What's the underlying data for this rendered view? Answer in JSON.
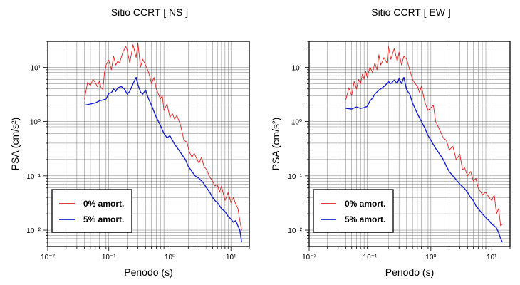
{
  "chart_data": [
    {
      "type": "line",
      "title": "Sitio CCRT [ NS ]",
      "xlabel": "Periodo (s)",
      "ylabel": "PSA (cm/s²)",
      "xscale": "log",
      "yscale": "log",
      "xlim": [
        0.01,
        20
      ],
      "ylim": [
        0.005,
        30
      ],
      "x_ticks": [
        "10⁻²",
        "10⁻¹",
        "10⁰",
        "10¹"
      ],
      "y_ticks": [
        "10⁻²",
        "10⁻¹",
        "10⁰",
        "10¹"
      ],
      "grid": true,
      "legend_position": "bottom-left",
      "series": [
        {
          "name": "0% amort.",
          "color": "#e02020",
          "x": [
            0.04,
            0.045,
            0.05,
            0.055,
            0.06,
            0.065,
            0.07,
            0.075,
            0.08,
            0.085,
            0.09,
            0.1,
            0.11,
            0.12,
            0.13,
            0.14,
            0.15,
            0.17,
            0.19,
            0.2,
            0.22,
            0.25,
            0.28,
            0.3,
            0.33,
            0.36,
            0.4,
            0.45,
            0.5,
            0.55,
            0.6,
            0.65,
            0.7,
            0.75,
            0.8,
            0.9,
            1.0,
            1.1,
            1.2,
            1.3,
            1.5,
            1.7,
            1.9,
            2.1,
            2.3,
            2.5,
            2.8,
            3.0,
            3.3,
            3.6,
            4.0,
            4.5,
            5.0,
            5.5,
            6.0,
            6.5,
            7.0,
            8.0,
            9.0,
            10.0,
            11.0,
            12.0,
            13.0,
            14.0,
            15.0
          ],
          "values": [
            2.6,
            5.3,
            4.6,
            6.0,
            5.2,
            4.4,
            5.6,
            4.2,
            3.9,
            8.0,
            11.0,
            13.5,
            9.0,
            16.0,
            11.0,
            13.0,
            12.0,
            19.0,
            24.0,
            21.0,
            12.0,
            26.0,
            15.0,
            28.0,
            10.0,
            14.0,
            11.0,
            8.0,
            5.0,
            6.5,
            4.0,
            3.2,
            2.6,
            3.0,
            1.6,
            2.1,
            1.2,
            1.4,
            1.1,
            1.3,
            0.85,
            0.45,
            0.42,
            0.27,
            0.22,
            0.26,
            0.2,
            0.17,
            0.22,
            0.15,
            0.13,
            0.095,
            0.08,
            0.065,
            0.07,
            0.05,
            0.065,
            0.035,
            0.05,
            0.032,
            0.04,
            0.03,
            0.025,
            0.015,
            0.01
          ]
        },
        {
          "name": "5% amort.",
          "color": "#1520d0",
          "x": [
            0.04,
            0.05,
            0.06,
            0.07,
            0.08,
            0.09,
            0.1,
            0.11,
            0.12,
            0.13,
            0.14,
            0.16,
            0.18,
            0.2,
            0.22,
            0.25,
            0.28,
            0.3,
            0.33,
            0.36,
            0.4,
            0.45,
            0.5,
            0.6,
            0.7,
            0.8,
            0.9,
            1.0,
            1.2,
            1.4,
            1.6,
            1.8,
            2.0,
            2.3,
            2.6,
            3.0,
            3.5,
            4.0,
            4.5,
            5.0,
            5.5,
            6.0,
            7.0,
            8.0,
            9.0,
            10.0,
            11.0,
            12.0,
            13.0,
            14.0,
            15.0
          ],
          "values": [
            2.0,
            2.1,
            2.2,
            2.4,
            2.5,
            2.6,
            3.3,
            3.4,
            4.0,
            3.6,
            4.2,
            4.4,
            4.0,
            3.2,
            3.6,
            5.0,
            6.5,
            4.8,
            3.5,
            3.2,
            3.8,
            2.6,
            2.0,
            1.2,
            0.85,
            0.6,
            0.5,
            0.55,
            0.38,
            0.3,
            0.24,
            0.2,
            0.15,
            0.12,
            0.1,
            0.09,
            0.075,
            0.06,
            0.05,
            0.04,
            0.035,
            0.032,
            0.025,
            0.022,
            0.018,
            0.016,
            0.014,
            0.015,
            0.012,
            0.01,
            0.006
          ]
        }
      ]
    },
    {
      "type": "line",
      "title": "Sitio CCRT [ EW ]",
      "xlabel": "Periodo (s)",
      "ylabel": "PSA (cm/s²)",
      "xscale": "log",
      "yscale": "log",
      "xlim": [
        0.01,
        20
      ],
      "ylim": [
        0.005,
        30
      ],
      "x_ticks": [
        "10⁻²",
        "10⁻¹",
        "10⁰",
        "10¹"
      ],
      "y_ticks": [
        "10⁻²",
        "10⁻¹",
        "10⁰",
        "10¹"
      ],
      "grid": true,
      "legend_position": "bottom-left",
      "series": [
        {
          "name": "0% amort.",
          "color": "#e02020",
          "x": [
            0.04,
            0.045,
            0.05,
            0.055,
            0.06,
            0.065,
            0.07,
            0.075,
            0.08,
            0.085,
            0.09,
            0.1,
            0.11,
            0.12,
            0.13,
            0.14,
            0.15,
            0.17,
            0.19,
            0.2,
            0.22,
            0.25,
            0.28,
            0.3,
            0.33,
            0.36,
            0.4,
            0.45,
            0.5,
            0.55,
            0.6,
            0.65,
            0.7,
            0.8,
            0.9,
            1.0,
            1.1,
            1.2,
            1.4,
            1.6,
            1.8,
            2.0,
            2.3,
            2.6,
            3.0,
            3.3,
            3.6,
            4.0,
            4.5,
            5.0,
            5.5,
            6.0,
            7.0,
            8.0,
            9.0,
            10.0,
            11.0,
            12.0,
            13.0,
            14.0,
            15.0
          ],
          "values": [
            2.5,
            4.2,
            3.0,
            5.5,
            4.0,
            6.0,
            5.0,
            7.5,
            6.0,
            8.5,
            6.5,
            10.0,
            8.0,
            12.0,
            9.0,
            17.0,
            11.0,
            15.0,
            12.0,
            25.0,
            14.0,
            22.0,
            13.0,
            19.0,
            11.0,
            16.0,
            14.0,
            9.0,
            6.0,
            5.0,
            4.5,
            3.4,
            4.5,
            2.2,
            1.6,
            1.8,
            2.0,
            1.0,
            0.7,
            0.5,
            0.45,
            0.3,
            0.35,
            0.2,
            0.25,
            0.13,
            0.14,
            0.1,
            0.12,
            0.08,
            0.09,
            0.06,
            0.045,
            0.05,
            0.04,
            0.035,
            0.045,
            0.02,
            0.025,
            0.012,
            0.013
          ]
        },
        {
          "name": "5% amort.",
          "color": "#1520d0",
          "x": [
            0.04,
            0.05,
            0.06,
            0.07,
            0.08,
            0.09,
            0.1,
            0.11,
            0.12,
            0.14,
            0.16,
            0.18,
            0.2,
            0.22,
            0.25,
            0.28,
            0.3,
            0.33,
            0.36,
            0.4,
            0.45,
            0.5,
            0.6,
            0.7,
            0.8,
            0.9,
            1.0,
            1.2,
            1.4,
            1.6,
            1.8,
            2.0,
            2.3,
            2.6,
            3.0,
            3.5,
            4.0,
            4.5,
            5.0,
            5.5,
            6.0,
            7.0,
            8.0,
            9.0,
            10.0,
            11.0,
            12.0,
            13.0,
            14.0,
            15.0
          ],
          "values": [
            1.75,
            1.7,
            1.85,
            1.75,
            1.8,
            1.9,
            2.4,
            2.7,
            3.2,
            3.8,
            4.2,
            4.7,
            5.5,
            5.0,
            5.8,
            5.0,
            6.2,
            5.0,
            6.5,
            3.8,
            3.2,
            2.2,
            1.4,
            1.0,
            0.75,
            0.55,
            0.45,
            0.32,
            0.25,
            0.2,
            0.15,
            0.12,
            0.1,
            0.085,
            0.07,
            0.06,
            0.05,
            0.04,
            0.035,
            0.028,
            0.025,
            0.02,
            0.017,
            0.015,
            0.013,
            0.012,
            0.011,
            0.009,
            0.007,
            0.006
          ]
        }
      ]
    }
  ]
}
